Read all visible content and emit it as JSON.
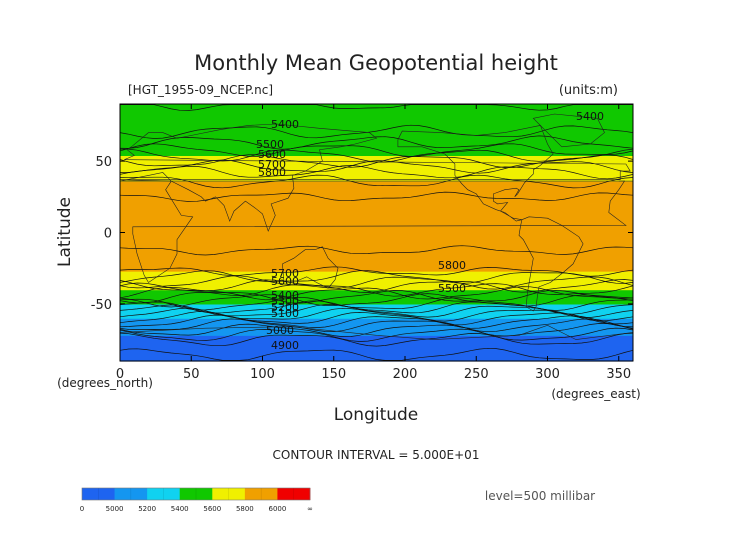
{
  "chart_data": {
    "type": "heatmap",
    "title": "Monthly Mean Geopotential height",
    "file_label": "[HGT_1955-09_NCEP.nc]",
    "units_label": "(units:m)",
    "xlabel": "Longitude",
    "ylabel": "Latitude",
    "x_unit_label": "(degrees_east)",
    "y_unit_label": "(degrees_north)",
    "xlim": [
      0,
      360
    ],
    "ylim": [
      -90,
      90
    ],
    "x_ticks": [
      0,
      50,
      100,
      150,
      200,
      250,
      300,
      350
    ],
    "y_ticks": [
      -50,
      0,
      50
    ],
    "contour_interval_text": "CONTOUR INTERVAL = 5.000E+01",
    "level_text": "level=500 millibar",
    "contour_labels": [
      "5400",
      "5400",
      "5500",
      "5600",
      "5700",
      "5800",
      "5800",
      "5500",
      "5700",
      "5600",
      "5400",
      "5300",
      "5200",
      "5100",
      "5000",
      "4900"
    ],
    "colorbar": {
      "tick_labels": [
        "0",
        "5000",
        "5200",
        "5400",
        "5600",
        "5800",
        "6000",
        "∞"
      ],
      "bands": [
        {
          "from": 0,
          "to": 5000,
          "color": "#1e64f0"
        },
        {
          "from": 5000,
          "to": 5200,
          "color": "#1496f0"
        },
        {
          "from": 5200,
          "to": 5400,
          "color": "#10d2f0"
        },
        {
          "from": 5400,
          "to": 5600,
          "color": "#10c800"
        },
        {
          "from": 5600,
          "to": 5800,
          "color": "#f0f000"
        },
        {
          "from": 5800,
          "to": 6000,
          "color": "#f0a000"
        },
        {
          "from": 6000,
          "to": 99999,
          "color": "#f00000"
        }
      ]
    },
    "lat_profile": [
      {
        "lat": -90,
        "value": 4880
      },
      {
        "lat": -75,
        "value": 4950
      },
      {
        "lat": -65,
        "value": 5100
      },
      {
        "lat": -55,
        "value": 5300
      },
      {
        "lat": -45,
        "value": 5500
      },
      {
        "lat": -35,
        "value": 5700
      },
      {
        "lat": -25,
        "value": 5830
      },
      {
        "lat": 0,
        "value": 5870
      },
      {
        "lat": 25,
        "value": 5850
      },
      {
        "lat": 40,
        "value": 5780
      },
      {
        "lat": 50,
        "value": 5650
      },
      {
        "lat": 60,
        "value": 5520
      },
      {
        "lat": 75,
        "value": 5420
      },
      {
        "lat": 90,
        "value": 5400
      }
    ]
  }
}
